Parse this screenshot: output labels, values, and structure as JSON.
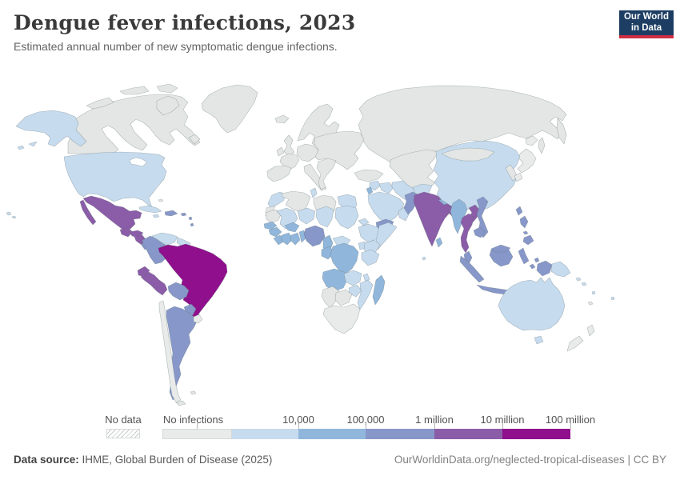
{
  "header": {
    "title": "Dengue fever infections, 2023",
    "subtitle": "Estimated annual number of new symptomatic dengue infections.",
    "logo": {
      "line1": "Our World",
      "line2": "in Data",
      "bg": "#1d3d63",
      "accent": "#cf2d42"
    }
  },
  "legend": {
    "no_data_label": "No data",
    "no_infections_label": "No infections",
    "tick_labels": {
      "t1": "10,000",
      "t2": "100,000",
      "t3": "1 million",
      "t4": "10 million",
      "t5": "100 million"
    },
    "colors": {
      "no_data": "#e3e6e4",
      "no_infections": "#e8ebe9",
      "lt_10k": "#c6dbee",
      "10k_100k": "#90b6db",
      "100k_1M": "#8797c9",
      "1M_10M": "#8b5ca8",
      "10M_100M": "#8f0f8c",
      "water": "#ffffff"
    }
  },
  "footer": {
    "source_label": "Data source:",
    "source_value": " IHME, Global Burden of Disease (2025)",
    "link": "OurWorldinData.org/neglected-tropical-diseases | CC BY"
  },
  "chart_data": {
    "type": "choropleth_map",
    "title": "Dengue fever infections, 2023",
    "unit": "new symptomatic dengue infections per year",
    "year": 2023,
    "legend_position": "bottom",
    "bins": [
      {
        "key": "no_data",
        "label": "No data"
      },
      {
        "key": "no_infections",
        "label": "No infections"
      },
      {
        "key": "lt_10k",
        "label": "up to 10,000"
      },
      {
        "key": "10k_100k",
        "label": "10,000 - 100,000"
      },
      {
        "key": "100k_1M",
        "label": "100,000 - 1 million"
      },
      {
        "key": "1M_10M",
        "label": "1 million - 10 million"
      },
      {
        "key": "10M_100M",
        "label": "10 million - 100 million"
      }
    ],
    "regions": {
      "canada": "no_data",
      "greenland": "no_data",
      "iceland": "no_data",
      "uk": "no_data",
      "ireland": "no_data",
      "scandinavia": "no_data",
      "eastern-europe": "no_data",
      "central-europe": "no_data",
      "france": "no_data",
      "iberia": "no_data",
      "italy": "no_data",
      "balkans": "no_data",
      "russia": "no_data",
      "kamchatka": "no_data",
      "sakhalin": "no_data",
      "turkey": "no_data",
      "kazakhstan-central-asia": "no_data",
      "mongolia": "no_data",
      "south-korea": "no_data",
      "algeria": "no_data",
      "libya": "no_data",
      "western-sahara": "no_data",
      "mauritania": "no_data",
      "namibia": "no_data",
      "botswana": "no_data",
      "bahamas": "no_data",
      "falkland-islands": "no_data",
      "tierra-del-fuego": "no_data",
      "new-caledonia": "no_data",
      "chile": "no_infections",
      "uruguay": "no_infections",
      "south-africa": "no_infections",
      "japan-hokkaido": "no_infections",
      "japan-honshu": "no_infections",
      "japan-kyushu": "no_infections",
      "new-zealand-north": "no_infections",
      "new-zealand-south": "no_infections",
      "alaska": "lt_10k",
      "united-states": "lt_10k",
      "hawaii": "lt_10k",
      "cuba": "lt_10k",
      "jamaica": "lt_10k",
      "venezuela": "lt_10k",
      "guyanas": "lt_10k",
      "morocco": "lt_10k",
      "tunisia": "lt_10k",
      "egypt": "lt_10k",
      "mali": "lt_10k",
      "niger": "lt_10k",
      "chad": "lt_10k",
      "sudan": "lt_10k",
      "eritrea": "lt_10k",
      "ethiopia": "lt_10k",
      "somalia": "lt_10k",
      "kenya": "lt_10k",
      "uganda": "lt_10k",
      "tanzania": "lt_10k",
      "car": "lt_10k",
      "zambia": "lt_10k",
      "malawi": "lt_10k",
      "mozambique": "lt_10k",
      "zimbabwe": "lt_10k",
      "saudi-arabia": "lt_10k",
      "oman": "lt_10k",
      "iraq": "lt_10k",
      "syria": "lt_10k",
      "iran": "lt_10k",
      "afghanistan": "lt_10k",
      "china": "lt_10k",
      "australia": "lt_10k",
      "tasmania": "lt_10k",
      "papua-new-guinea": "lt_10k",
      "solomon-1": "lt_10k",
      "solomon-2": "lt_10k",
      "fiji": "lt_10k",
      "vanuatu": "lt_10k",
      "maldives": "lt_10k",
      "aleutians": "lt_10k",
      "senegal": "10k_100k",
      "guinea": "10k_100k",
      "sierra-leone-liberia": "10k_100k",
      "ivory-coast": "10k_100k",
      "ghana": "10k_100k",
      "burkina-faso": "10k_100k",
      "togo-benin": "10k_100k",
      "cameroon": "10k_100k",
      "gabon-congo": "10k_100k",
      "drc": "10k_100k",
      "angola": "10k_100k",
      "madagascar": "10k_100k",
      "myanmar": "10k_100k",
      "nepal": "10k_100k",
      "sri-lanka": "10k_100k",
      "israel-jordan": "10k_100k",
      "colombia": "100k_1M",
      "bolivia": "100k_1M",
      "paraguay": "100k_1M",
      "argentina": "100k_1M",
      "costa-rica": "100k_1M",
      "panama": "100k_1M",
      "hispaniola": "100k_1M",
      "puerto-rico": "100k_1M",
      "lesser-antilles-1": "100k_1M",
      "lesser-antilles-2": "100k_1M",
      "nigeria": "100k_1M",
      "yemen": "100k_1M",
      "pakistan": "100k_1M",
      "vietnam": "100k_1M",
      "cambodia": "100k_1M",
      "malaysia-peninsula": "100k_1M",
      "malaysia-borneo": "100k_1M",
      "sumatra": "100k_1M",
      "java": "100k_1M",
      "borneo": "100k_1M",
      "sulawesi": "100k_1M",
      "lesser-sunda": "100k_1M",
      "moluccas-1": "100k_1M",
      "moluccas-2": "100k_1M",
      "west-papua": "100k_1M",
      "philippines-luzon": "100k_1M",
      "philippines-visayas": "100k_1M",
      "philippines-mindanao": "100k_1M",
      "taiwan": "100k_1M",
      "mexico": "1M_10M",
      "guatemala": "1M_10M",
      "honduras": "1M_10M",
      "nicaragua": "1M_10M",
      "ecuador": "1M_10M",
      "peru": "1M_10M",
      "india": "1M_10M",
      "bangladesh": "1M_10M",
      "thailand": "1M_10M",
      "laos": "1M_10M",
      "brazil": "10M_100M",
      "great-lakes": "water"
    }
  }
}
